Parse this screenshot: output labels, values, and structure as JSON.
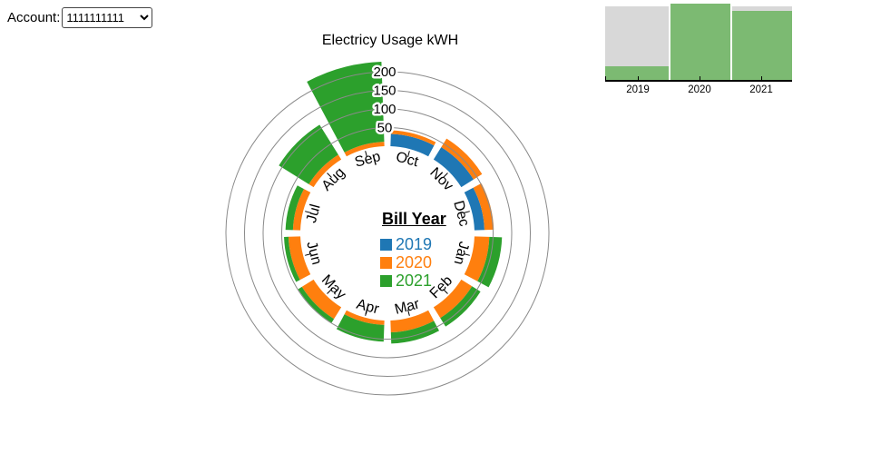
{
  "account": {
    "label": "Account:",
    "value": "1111111111"
  },
  "colors": {
    "grid": "#8a8a8a",
    "mini_green": "#7cba72",
    "mini_gray": "#d8d8d8",
    "years": {
      "2019": "#1f77b4",
      "2020": "#ff7f0e",
      "2021": "#2ca02c"
    }
  },
  "chart_data": [
    {
      "type": "radial-stacked-bar",
      "title": "Electricy Usage kWH",
      "unit": "kWH",
      "radial_ticks": [
        50,
        100,
        150,
        200
      ],
      "legend": {
        "title": "Bill Year",
        "entries": [
          {
            "label": "2019",
            "color": "#1f77b4"
          },
          {
            "label": "2020",
            "color": "#ff7f0e"
          },
          {
            "label": "2021",
            "color": "#2ca02c"
          }
        ]
      },
      "months": [
        {
          "label": "Oct",
          "segments": [
            {
              "year": "2019",
              "value": 33
            },
            {
              "year": "2020",
              "value": 10
            }
          ]
        },
        {
          "label": "Nov",
          "segments": [
            {
              "year": "2019",
              "value": 39
            },
            {
              "year": "2020",
              "value": 27
            }
          ]
        },
        {
          "label": "Dec",
          "segments": [
            {
              "year": "2019",
              "value": 27
            },
            {
              "year": "2020",
              "value": 25
            }
          ]
        },
        {
          "label": "Jan",
          "segments": [
            {
              "year": "2020",
              "value": 40
            },
            {
              "year": "2021",
              "value": 34
            }
          ]
        },
        {
          "label": "Feb",
          "segments": [
            {
              "year": "2020",
              "value": 34
            },
            {
              "year": "2021",
              "value": 27
            }
          ]
        },
        {
          "label": "Mar",
          "segments": [
            {
              "year": "2020",
              "value": 32
            },
            {
              "year": "2021",
              "value": 30
            }
          ]
        },
        {
          "label": "Apr",
          "segments": [
            {
              "year": "2020",
              "value": 12
            },
            {
              "year": "2021",
              "value": 45
            }
          ]
        },
        {
          "label": "May",
          "segments": [
            {
              "year": "2020",
              "value": 37
            },
            {
              "year": "2021",
              "value": 12
            }
          ]
        },
        {
          "label": "Jun",
          "segments": [
            {
              "year": "2020",
              "value": 32
            },
            {
              "year": "2021",
              "value": 12
            }
          ]
        },
        {
          "label": "Jul",
          "segments": [
            {
              "year": "2020",
              "value": 20
            },
            {
              "year": "2021",
              "value": 20
            }
          ]
        },
        {
          "label": "Aug",
          "segments": [
            {
              "year": "2020",
              "value": 15
            },
            {
              "year": "2021",
              "value": 95
            }
          ]
        },
        {
          "label": "Sep",
          "segments": [
            {
              "year": "2020",
              "value": 12
            },
            {
              "year": "2021",
              "value": 215
            }
          ]
        }
      ]
    },
    {
      "type": "bar",
      "categories": [
        "2019",
        "2020",
        "2021"
      ],
      "values_fraction_of_height": [
        0.18,
        1.0,
        0.9
      ],
      "background_fraction": 0.96,
      "ylabel": "",
      "xlabel": "",
      "note": "green yearly-total bars over full-height gray background columns; no numeric y axis shown"
    }
  ]
}
